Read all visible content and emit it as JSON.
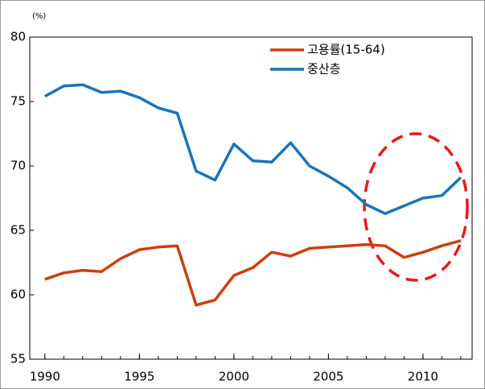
{
  "chart_data": {
    "type": "line",
    "y_label": "(%)",
    "x": [
      1990,
      1991,
      1992,
      1993,
      1994,
      1995,
      1996,
      1997,
      1998,
      1999,
      2000,
      2001,
      2002,
      2003,
      2004,
      2005,
      2006,
      2007,
      2008,
      2009,
      2010,
      2011,
      2012
    ],
    "series": [
      {
        "name": "고용률(15-64)",
        "color": "#c9400e",
        "values": [
          61.2,
          61.7,
          61.9,
          61.8,
          62.8,
          63.5,
          63.7,
          63.8,
          59.2,
          59.6,
          61.5,
          62.1,
          63.3,
          63.0,
          63.6,
          63.7,
          63.8,
          63.9,
          63.8,
          62.9,
          63.3,
          63.8,
          64.2
        ]
      },
      {
        "name": "중산층",
        "color": "#1a74b9",
        "values": [
          75.4,
          76.2,
          76.3,
          75.7,
          75.8,
          75.3,
          74.5,
          74.1,
          69.6,
          68.9,
          71.7,
          70.4,
          70.3,
          71.8,
          70.0,
          69.2,
          68.3,
          67.0,
          66.3,
          66.9,
          67.5,
          67.7,
          69.1
        ]
      }
    ],
    "xlim": [
      1989.2,
      2012.6
    ],
    "xticks": [
      1990,
      1995,
      2000,
      2005,
      2010
    ],
    "ylim": [
      55,
      80
    ],
    "yticks": [
      55,
      60,
      65,
      70,
      75,
      80
    ],
    "legend": "top-right"
  }
}
